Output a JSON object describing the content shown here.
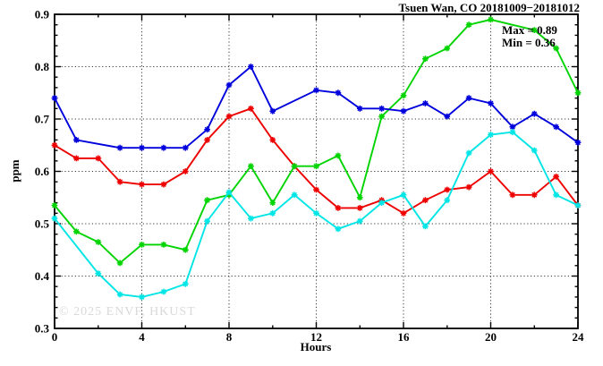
{
  "title": "Tsuen Wan, CO 20181009−20181012",
  "annotations": {
    "max_label": "Max = 0.89",
    "min_label": "Min = 0.36"
  },
  "watermark": "© 2025 ENVF, HKUST",
  "chart_data": {
    "type": "line",
    "title": "Tsuen Wan, CO 20181009−20181012",
    "xlabel": "Hours",
    "ylabel": "ppm",
    "xlim": [
      0,
      24
    ],
    "ylim": [
      0.3,
      0.9
    ],
    "x": [
      0,
      1,
      2,
      3,
      4,
      5,
      6,
      7,
      8,
      9,
      10,
      11,
      12,
      13,
      14,
      15,
      16,
      17,
      18,
      19,
      20,
      21,
      22,
      23,
      24
    ],
    "x_tick_labels": [
      "0",
      "4",
      "8",
      "12",
      "16",
      "20",
      "24"
    ],
    "x_major_ticks": [
      0,
      4,
      8,
      12,
      16,
      20,
      24
    ],
    "x_minor_ticks": [
      2,
      6,
      10,
      14,
      18,
      22
    ],
    "y_tick_labels": [
      "0.3",
      "0.4",
      "0.5",
      "0.6",
      "0.7",
      "0.8",
      "0.9"
    ],
    "y_major_ticks": [
      0.3,
      0.4,
      0.5,
      0.6,
      0.7,
      0.8,
      0.9
    ],
    "y_minor_step": 0.02,
    "grid": {
      "x_lines": [
        4,
        8,
        12,
        16,
        20
      ],
      "y_lines": [
        0.4,
        0.5,
        0.6,
        0.7,
        0.8
      ]
    },
    "max": 0.89,
    "min": 0.36,
    "series": [
      {
        "name": "red",
        "color": "#ee0000",
        "values": [
          0.65,
          0.625,
          0.625,
          0.58,
          0.575,
          0.575,
          0.6,
          0.66,
          0.705,
          0.72,
          0.66,
          0.61,
          0.565,
          0.53,
          0.53,
          0.545,
          0.52,
          0.545,
          0.565,
          0.57,
          0.6,
          0.555,
          0.555,
          0.59,
          0.535
        ]
      },
      {
        "name": "green",
        "color": "#00d400",
        "values": [
          0.535,
          0.485,
          0.465,
          0.425,
          0.46,
          0.46,
          0.45,
          0.545,
          0.555,
          0.61,
          0.54,
          0.61,
          0.61,
          0.63,
          0.55,
          0.705,
          0.745,
          0.815,
          0.835,
          0.88,
          0.89,
          null,
          0.87,
          0.835,
          0.75
        ]
      },
      {
        "name": "blue",
        "color": "#0000dd",
        "values": [
          0.74,
          0.66,
          null,
          0.645,
          0.645,
          0.645,
          0.645,
          0.68,
          0.765,
          0.8,
          0.715,
          null,
          0.755,
          0.75,
          0.72,
          0.72,
          0.715,
          0.73,
          0.705,
          0.74,
          0.73,
          0.685,
          0.71,
          0.685,
          0.655
        ]
      },
      {
        "name": "cyan",
        "color": "#00e5e5",
        "values": [
          0.51,
          null,
          0.405,
          0.365,
          0.36,
          0.37,
          0.385,
          0.505,
          0.56,
          0.51,
          0.52,
          0.555,
          0.52,
          0.49,
          0.505,
          0.54,
          0.555,
          0.495,
          0.545,
          0.635,
          0.67,
          0.675,
          0.64,
          0.555,
          0.535
        ]
      }
    ]
  }
}
